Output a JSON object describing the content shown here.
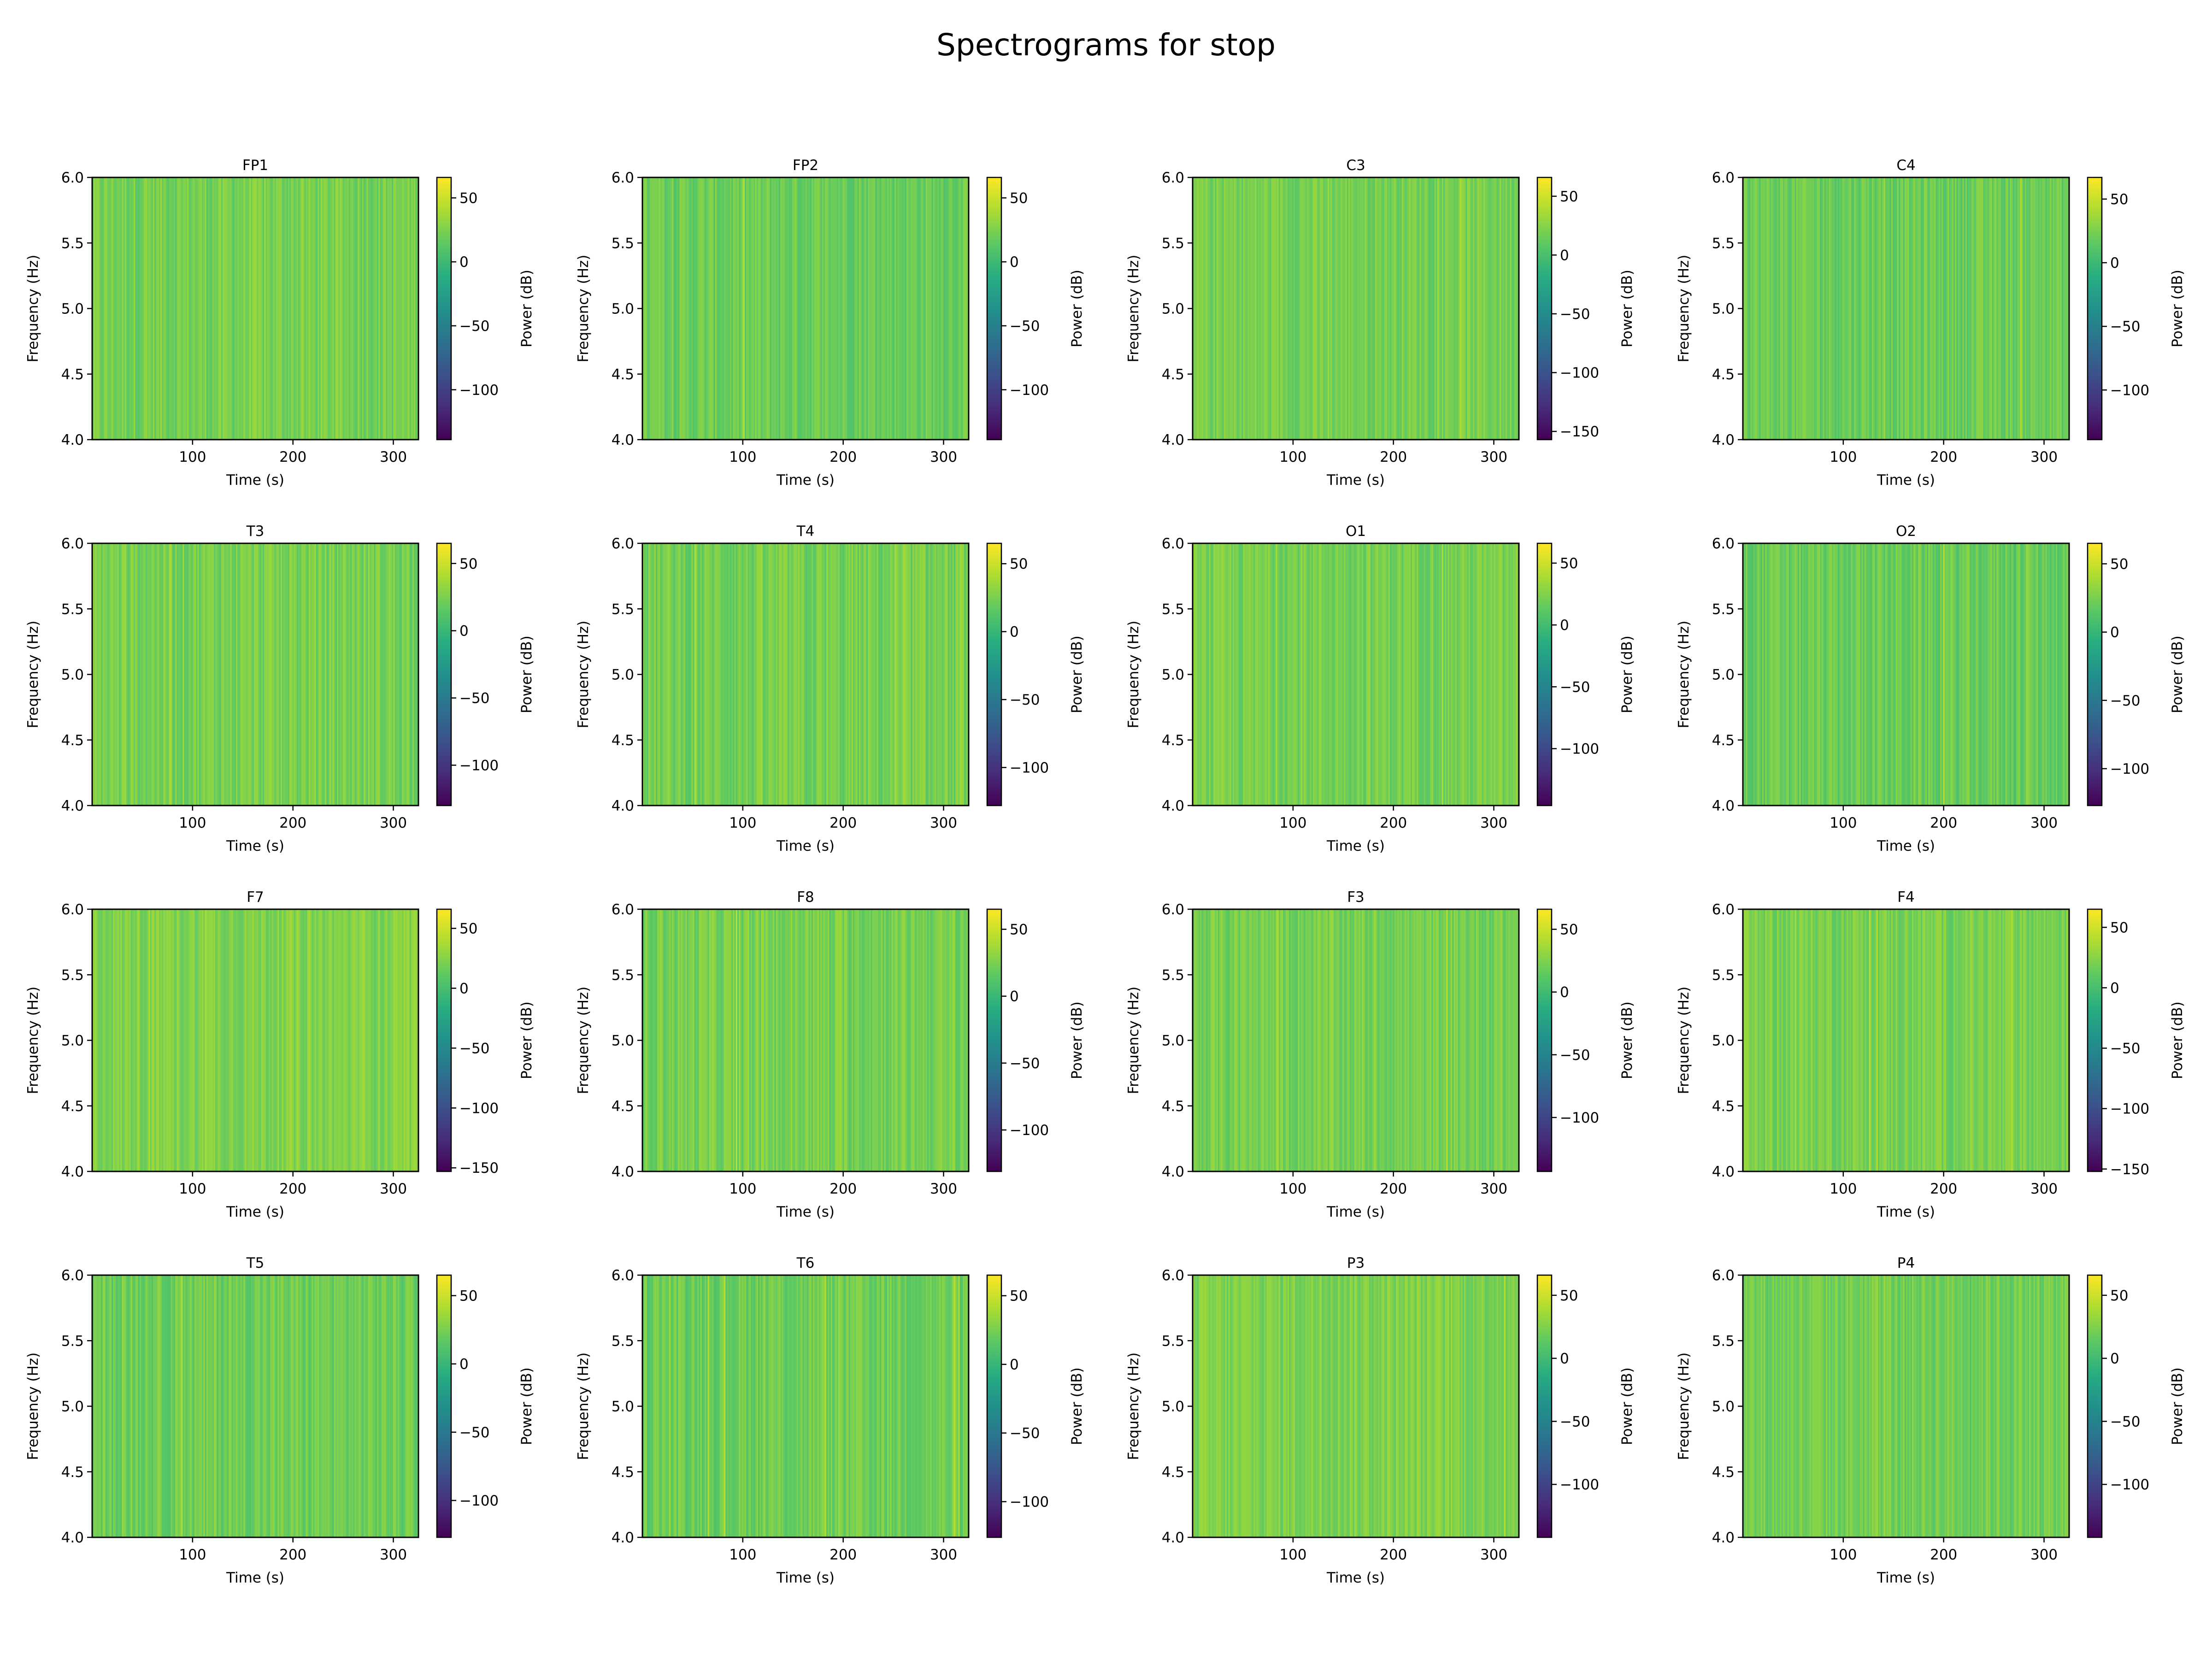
{
  "figure": {
    "title": "Spectrograms for stop"
  },
  "chart_data": [
    {
      "type": "heatmap",
      "title": "FP1",
      "xlabel": "Time (s)",
      "ylabel": "Frequency (Hz)",
      "xlim": [
        0,
        325
      ],
      "ylim": [
        4.0,
        6.0
      ],
      "xticks": [
        "100",
        "200",
        "300"
      ],
      "yticks": [
        "4.0",
        "4.5",
        "5.0",
        "5.5",
        "6.0"
      ],
      "colorbar": {
        "label": "Power (dB)",
        "colormap": "viridis",
        "range": [
          -139,
          66
        ],
        "ticks": [
          "50",
          "0",
          "−50",
          "−100"
        ]
      }
    },
    {
      "type": "heatmap",
      "title": "FP2",
      "xlabel": "Time (s)",
      "ylabel": "Frequency (Hz)",
      "xlim": [
        0,
        325
      ],
      "ylim": [
        4.0,
        6.0
      ],
      "xticks": [
        "100",
        "200",
        "300"
      ],
      "yticks": [
        "4.0",
        "4.5",
        "5.0",
        "5.5",
        "6.0"
      ],
      "colorbar": {
        "label": "Power (dB)",
        "colormap": "viridis",
        "range": [
          -139,
          66
        ],
        "ticks": [
          "50",
          "0",
          "−50",
          "−100"
        ]
      }
    },
    {
      "type": "heatmap",
      "title": "C3",
      "xlabel": "Time (s)",
      "ylabel": "Frequency (Hz)",
      "xlim": [
        0,
        325
      ],
      "ylim": [
        4.0,
        6.0
      ],
      "xticks": [
        "100",
        "200",
        "300"
      ],
      "yticks": [
        "4.0",
        "4.5",
        "5.0",
        "5.5",
        "6.0"
      ],
      "colorbar": {
        "label": "Power (dB)",
        "colormap": "viridis",
        "range": [
          -157,
          66
        ],
        "ticks": [
          "50",
          "0",
          "−50",
          "−100",
          "−150"
        ]
      }
    },
    {
      "type": "heatmap",
      "title": "C4",
      "xlabel": "Time (s)",
      "ylabel": "Frequency (Hz)",
      "xlim": [
        0,
        325
      ],
      "ylim": [
        4.0,
        6.0
      ],
      "xticks": [
        "100",
        "200",
        "300"
      ],
      "yticks": [
        "4.0",
        "4.5",
        "5.0",
        "5.5",
        "6.0"
      ],
      "colorbar": {
        "label": "Power (dB)",
        "colormap": "viridis",
        "range": [
          -139,
          67
        ],
        "ticks": [
          "50",
          "0",
          "−50",
          "−100"
        ]
      }
    },
    {
      "type": "heatmap",
      "title": "T3",
      "xlabel": "Time (s)",
      "ylabel": "Frequency (Hz)",
      "xlim": [
        0,
        325
      ],
      "ylim": [
        4.0,
        6.0
      ],
      "xticks": [
        "100",
        "200",
        "300"
      ],
      "yticks": [
        "4.0",
        "4.5",
        "5.0",
        "5.5",
        "6.0"
      ],
      "colorbar": {
        "label": "Power (dB)",
        "colormap": "viridis",
        "range": [
          -130,
          65
        ],
        "ticks": [
          "50",
          "0",
          "−50",
          "−100"
        ]
      }
    },
    {
      "type": "heatmap",
      "title": "T4",
      "xlabel": "Time (s)",
      "ylabel": "Frequency (Hz)",
      "xlim": [
        0,
        325
      ],
      "ylim": [
        4.0,
        6.0
      ],
      "xticks": [
        "100",
        "200",
        "300"
      ],
      "yticks": [
        "4.0",
        "4.5",
        "5.0",
        "5.5",
        "6.0"
      ],
      "colorbar": {
        "label": "Power (dB)",
        "colormap": "viridis",
        "range": [
          -128,
          65
        ],
        "ticks": [
          "50",
          "0",
          "−50",
          "−100"
        ]
      }
    },
    {
      "type": "heatmap",
      "title": "O1",
      "xlabel": "Time (s)",
      "ylabel": "Frequency (Hz)",
      "xlim": [
        0,
        325
      ],
      "ylim": [
        4.0,
        6.0
      ],
      "xticks": [
        "100",
        "200",
        "300"
      ],
      "yticks": [
        "4.0",
        "4.5",
        "5.0",
        "5.5",
        "6.0"
      ],
      "colorbar": {
        "label": "Power (dB)",
        "colormap": "viridis",
        "range": [
          -146,
          66
        ],
        "ticks": [
          "50",
          "0",
          "−50",
          "−100"
        ]
      }
    },
    {
      "type": "heatmap",
      "title": "O2",
      "xlabel": "Time (s)",
      "ylabel": "Frequency (Hz)",
      "xlim": [
        0,
        325
      ],
      "ylim": [
        4.0,
        6.0
      ],
      "xticks": [
        "100",
        "200",
        "300"
      ],
      "yticks": [
        "4.0",
        "4.5",
        "5.0",
        "5.5",
        "6.0"
      ],
      "colorbar": {
        "label": "Power (dB)",
        "colormap": "viridis",
        "range": [
          -127,
          65
        ],
        "ticks": [
          "50",
          "0",
          "−50",
          "−100"
        ]
      }
    },
    {
      "type": "heatmap",
      "title": "F7",
      "xlabel": "Time (s)",
      "ylabel": "Frequency (Hz)",
      "xlim": [
        0,
        325
      ],
      "ylim": [
        4.0,
        6.0
      ],
      "xticks": [
        "100",
        "200",
        "300"
      ],
      "yticks": [
        "4.0",
        "4.5",
        "5.0",
        "5.5",
        "6.0"
      ],
      "colorbar": {
        "label": "Power (dB)",
        "colormap": "viridis",
        "range": [
          -153,
          66
        ],
        "ticks": [
          "50",
          "0",
          "−50",
          "−100",
          "−150"
        ]
      }
    },
    {
      "type": "heatmap",
      "title": "F8",
      "xlabel": "Time (s)",
      "ylabel": "Frequency (Hz)",
      "xlim": [
        0,
        325
      ],
      "ylim": [
        4.0,
        6.0
      ],
      "xticks": [
        "100",
        "200",
        "300"
      ],
      "yticks": [
        "4.0",
        "4.5",
        "5.0",
        "5.5",
        "6.0"
      ],
      "colorbar": {
        "label": "Power (dB)",
        "colormap": "viridis",
        "range": [
          -131,
          65
        ],
        "ticks": [
          "50",
          "0",
          "−50",
          "−100"
        ]
      }
    },
    {
      "type": "heatmap",
      "title": "F3",
      "xlabel": "Time (s)",
      "ylabel": "Frequency (Hz)",
      "xlim": [
        0,
        325
      ],
      "ylim": [
        4.0,
        6.0
      ],
      "xticks": [
        "100",
        "200",
        "300"
      ],
      "yticks": [
        "4.0",
        "4.5",
        "5.0",
        "5.5",
        "6.0"
      ],
      "colorbar": {
        "label": "Power (dB)",
        "colormap": "viridis",
        "range": [
          -143,
          66
        ],
        "ticks": [
          "50",
          "0",
          "−50",
          "−100"
        ]
      }
    },
    {
      "type": "heatmap",
      "title": "F4",
      "xlabel": "Time (s)",
      "ylabel": "Frequency (Hz)",
      "xlim": [
        0,
        325
      ],
      "ylim": [
        4.0,
        6.0
      ],
      "xticks": [
        "100",
        "200",
        "300"
      ],
      "yticks": [
        "4.0",
        "4.5",
        "5.0",
        "5.5",
        "6.0"
      ],
      "colorbar": {
        "label": "Power (dB)",
        "colormap": "viridis",
        "range": [
          -152,
          65
        ],
        "ticks": [
          "50",
          "0",
          "−50",
          "−100",
          "−150"
        ]
      }
    },
    {
      "type": "heatmap",
      "title": "T5",
      "xlabel": "Time (s)",
      "ylabel": "Frequency (Hz)",
      "xlim": [
        0,
        325
      ],
      "ylim": [
        4.0,
        6.0
      ],
      "xticks": [
        "100",
        "200",
        "300"
      ],
      "yticks": [
        "4.0",
        "4.5",
        "5.0",
        "5.5",
        "6.0"
      ],
      "colorbar": {
        "label": "Power (dB)",
        "colormap": "viridis",
        "range": [
          -127,
          65
        ],
        "ticks": [
          "50",
          "0",
          "−50",
          "−100"
        ]
      }
    },
    {
      "type": "heatmap",
      "title": "T6",
      "xlabel": "Time (s)",
      "ylabel": "Frequency (Hz)",
      "xlim": [
        0,
        325
      ],
      "ylim": [
        4.0,
        6.0
      ],
      "xticks": [
        "100",
        "200",
        "300"
      ],
      "yticks": [
        "4.0",
        "4.5",
        "5.0",
        "5.5",
        "6.0"
      ],
      "colorbar": {
        "label": "Power (dB)",
        "colormap": "viridis",
        "range": [
          -126,
          65
        ],
        "ticks": [
          "50",
          "0",
          "−50",
          "−100"
        ]
      }
    },
    {
      "type": "heatmap",
      "title": "P3",
      "xlabel": "Time (s)",
      "ylabel": "Frequency (Hz)",
      "xlim": [
        0,
        325
      ],
      "ylim": [
        4.0,
        6.0
      ],
      "xticks": [
        "100",
        "200",
        "300"
      ],
      "yticks": [
        "4.0",
        "4.5",
        "5.0",
        "5.5",
        "6.0"
      ],
      "colorbar": {
        "label": "Power (dB)",
        "colormap": "viridis",
        "range": [
          -142,
          66
        ],
        "ticks": [
          "50",
          "0",
          "−50",
          "−100"
        ]
      }
    },
    {
      "type": "heatmap",
      "title": "P4",
      "xlabel": "Time (s)",
      "ylabel": "Frequency (Hz)",
      "xlim": [
        0,
        325
      ],
      "ylim": [
        4.0,
        6.0
      ],
      "xticks": [
        "100",
        "200",
        "300"
      ],
      "yticks": [
        "4.0",
        "4.5",
        "5.0",
        "5.5",
        "6.0"
      ],
      "colorbar": {
        "label": "Power (dB)",
        "colormap": "viridis",
        "range": [
          -142,
          66
        ],
        "ticks": [
          "50",
          "0",
          "−50",
          "−100"
        ]
      }
    }
  ]
}
